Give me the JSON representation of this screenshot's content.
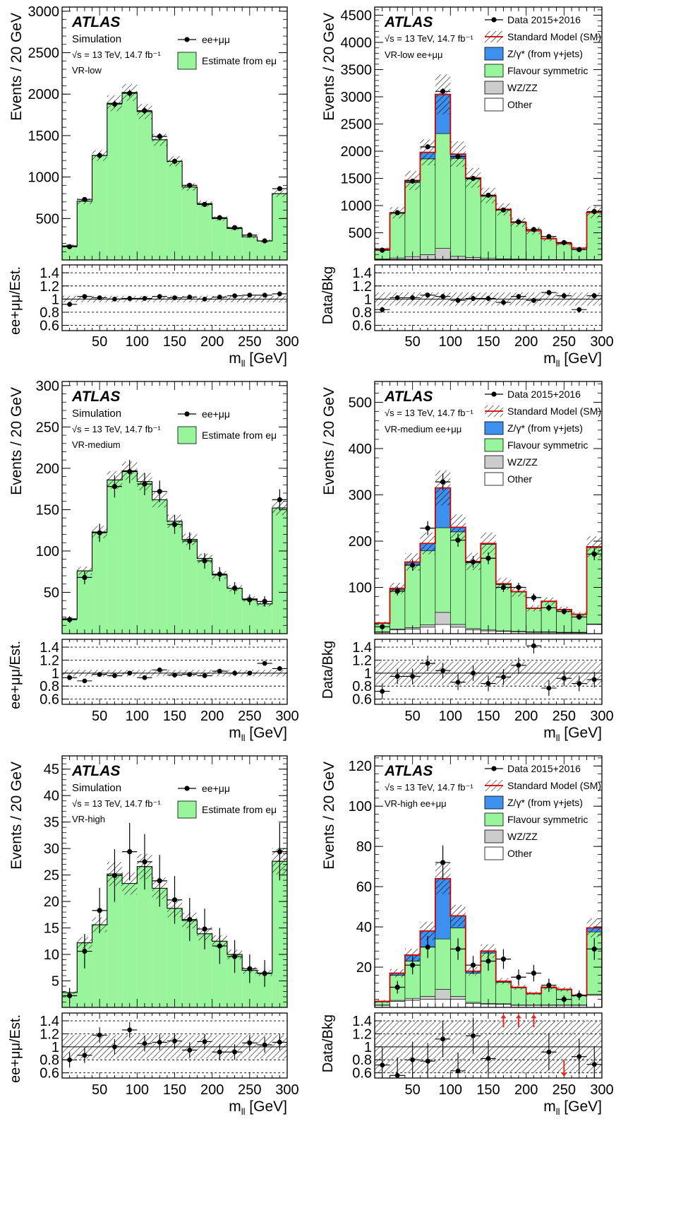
{
  "colors": {
    "flavour": "#99f59c",
    "zgamma": "#3d90ee",
    "wzzz": "#cccccc",
    "other": "#ffffff",
    "sm_line": "#d20000",
    "arrow": "#e8291c"
  },
  "labels": {
    "atlas": "ATLAS",
    "simulation": "Simulation",
    "energy": "√s = 13 TeV, 14.7 fb⁻¹",
    "xlabel": "m",
    "xlabel_sub": "ll",
    "xlabel_unit": " [GeV]",
    "ylabel_main": "Events / 20 GeV",
    "ylabel_ratio_mc": "ee+μμ/Est.",
    "ylabel_ratio_data": "Data/Bkg",
    "legend_mc_data": "ee+μμ",
    "legend_mc_est": "Estimate from eμ",
    "legend_data": "Data 2015+2016",
    "legend_sm": "Standard Model (SM)",
    "legend_zgamma": "Z/γ* (from γ+jets)",
    "legend_flavour": "Flavour symmetric",
    "legend_wzzz": "WZ/ZZ",
    "legend_other": "Other"
  },
  "chart_data": [
    {
      "id": "mc_low",
      "type": "bar",
      "region": "VR-low",
      "kind": "mc",
      "xlim": [
        0,
        300
      ],
      "ylim": [
        0,
        3050
      ],
      "yticks": [
        500,
        1000,
        1500,
        2000,
        2500,
        3000
      ],
      "xticks": [
        50,
        100,
        150,
        200,
        250,
        300
      ],
      "x": [
        10,
        30,
        50,
        70,
        90,
        110,
        130,
        150,
        170,
        190,
        210,
        230,
        250,
        270,
        290
      ],
      "estimate": [
        170,
        710,
        1260,
        1890,
        2020,
        1790,
        1450,
        1190,
        880,
        680,
        500,
        380,
        280,
        230,
        800
      ],
      "data": [
        160,
        730,
        1260,
        1880,
        2010,
        1800,
        1490,
        1190,
        900,
        670,
        510,
        390,
        300,
        230,
        860
      ],
      "ratio": [
        0.92,
        1.04,
        1.02,
        1.0,
        1.01,
        1.01,
        1.04,
        1.02,
        1.03,
        1.0,
        1.03,
        1.05,
        1.06,
        1.06,
        1.08
      ]
    },
    {
      "id": "data_low",
      "type": "bar",
      "region": "VR-low ee+μμ",
      "kind": "data",
      "xlim": [
        0,
        300
      ],
      "ylim": [
        0,
        4650
      ],
      "yticks": [
        500,
        1000,
        1500,
        2000,
        2500,
        3000,
        3500,
        4000,
        4500
      ],
      "xticks": [
        50,
        100,
        150,
        200,
        250,
        300
      ],
      "x": [
        10,
        30,
        50,
        70,
        90,
        110,
        130,
        150,
        170,
        190,
        210,
        230,
        250,
        270,
        290
      ],
      "other": [
        10,
        12,
        12,
        14,
        14,
        12,
        10,
        8,
        7,
        6,
        5,
        4,
        4,
        3,
        4
      ],
      "wzzz": [
        8,
        25,
        50,
        85,
        200,
        55,
        35,
        22,
        14,
        10,
        7,
        5,
        4,
        3,
        5
      ],
      "zgamma": [
        4,
        10,
        40,
        120,
        720,
        80,
        25,
        15,
        10,
        6,
        4,
        3,
        2,
        2,
        5
      ],
      "flavour": [
        180,
        820,
        1360,
        1760,
        2110,
        1800,
        1440,
        1140,
        900,
        670,
        520,
        380,
        290,
        210,
        860
      ],
      "data": [
        180,
        870,
        1450,
        2080,
        3100,
        1900,
        1500,
        1190,
        920,
        700,
        560,
        430,
        320,
        190,
        890
      ],
      "ratio": [
        0.84,
        1.02,
        1.02,
        1.06,
        1.04,
        0.98,
        1.01,
        1.01,
        0.95,
        1.04,
        0.98,
        1.1,
        1.05,
        0.84,
        1.05
      ]
    },
    {
      "id": "mc_medium",
      "type": "bar",
      "region": "VR-medium",
      "kind": "mc",
      "xlim": [
        0,
        300
      ],
      "ylim": [
        0,
        305
      ],
      "yticks": [
        50,
        100,
        150,
        200,
        250,
        300
      ],
      "xticks": [
        50,
        100,
        150,
        200,
        250,
        300
      ],
      "x": [
        10,
        30,
        50,
        70,
        90,
        110,
        130,
        150,
        170,
        190,
        210,
        230,
        250,
        270,
        290
      ],
      "estimate": [
        18,
        76,
        123,
        186,
        197,
        184,
        162,
        136,
        114,
        91,
        71,
        55,
        42,
        36,
        152
      ],
      "data": [
        17,
        68,
        122,
        178,
        196,
        181,
        172,
        132,
        112,
        88,
        72,
        55,
        41,
        39,
        162
      ],
      "ratio": [
        0.93,
        0.88,
        0.98,
        0.96,
        1.0,
        0.93,
        1.05,
        0.97,
        0.98,
        0.96,
        1.03,
        1.0,
        1.0,
        1.15,
        1.07
      ]
    },
    {
      "id": "data_medium",
      "type": "bar",
      "region": "VR-medium ee+μμ",
      "kind": "data",
      "xlim": [
        0,
        300
      ],
      "ylim": [
        0,
        545
      ],
      "yticks": [
        100,
        200,
        300,
        400,
        500
      ],
      "xticks": [
        50,
        100,
        150,
        200,
        250,
        300
      ],
      "x": [
        10,
        30,
        50,
        70,
        90,
        110,
        130,
        150,
        170,
        190,
        210,
        230,
        250,
        270,
        290
      ],
      "other": [
        3,
        8,
        10,
        14,
        20,
        14,
        8,
        6,
        5,
        4,
        3,
        3,
        2,
        2,
        20
      ],
      "wzzz": [
        1,
        2,
        3,
        5,
        26,
        6,
        3,
        2,
        1,
        1,
        1,
        1,
        1,
        1,
        1
      ],
      "zgamma": [
        1,
        3,
        7,
        16,
        86,
        10,
        3,
        2,
        2,
        1,
        1,
        1,
        1,
        1,
        2
      ],
      "flavour": [
        18,
        85,
        135,
        160,
        183,
        200,
        142,
        185,
        100,
        85,
        50,
        65,
        48,
        38,
        165
      ],
      "data": [
        15,
        92,
        148,
        228,
        328,
        202,
        155,
        163,
        100,
        100,
        78,
        56,
        48,
        36,
        172
      ],
      "ratio": [
        0.72,
        0.95,
        0.95,
        1.15,
        1.04,
        0.86,
        1.0,
        0.84,
        0.94,
        1.12,
        1.42,
        0.77,
        0.92,
        0.84,
        0.9
      ]
    },
    {
      "id": "mc_high",
      "type": "bar",
      "region": "VR-high",
      "kind": "mc",
      "xlim": [
        0,
        300
      ],
      "ylim": [
        0,
        47.5
      ],
      "yticks": [
        5,
        10,
        15,
        20,
        25,
        30,
        35,
        40,
        45
      ],
      "xticks": [
        50,
        100,
        150,
        200,
        250,
        300
      ],
      "x": [
        10,
        30,
        50,
        70,
        90,
        110,
        130,
        150,
        170,
        190,
        210,
        230,
        250,
        270,
        290
      ],
      "estimate": [
        2.8,
        12.2,
        15.6,
        25.2,
        23.4,
        26.6,
        22.5,
        18.7,
        16.4,
        13.9,
        12.5,
        10.0,
        7.0,
        6.5,
        27.6
      ],
      "data": [
        2.2,
        10.6,
        18.3,
        24.9,
        29.4,
        27.5,
        23.9,
        20.3,
        16.6,
        14.8,
        11.6,
        9.6,
        7.3,
        6.4,
        29.4
      ],
      "ratio": [
        0.8,
        0.87,
        1.18,
        1.0,
        1.26,
        1.05,
        1.07,
        1.09,
        0.95,
        1.08,
        0.92,
        0.92,
        1.06,
        1.03,
        1.07
      ]
    },
    {
      "id": "data_high",
      "type": "bar",
      "region": "VR-high ee+μμ",
      "kind": "data",
      "xlim": [
        0,
        300
      ],
      "ylim": [
        0,
        125
      ],
      "yticks": [
        20,
        40,
        60,
        80,
        100,
        120
      ],
      "xticks": [
        50,
        100,
        150,
        200,
        250,
        300
      ],
      "x": [
        10,
        30,
        50,
        70,
        90,
        110,
        130,
        150,
        170,
        190,
        210,
        230,
        250,
        270,
        290
      ],
      "other": [
        1,
        3,
        3.5,
        4,
        4,
        4,
        2,
        1.5,
        1.5,
        1,
        1,
        1,
        1,
        1,
        6
      ],
      "wzzz": [
        0.2,
        0.5,
        1,
        1.5,
        5,
        1.5,
        0.5,
        0.5,
        0.3,
        0.2,
        0.2,
        0.2,
        0.2,
        0.2,
        0.5
      ],
      "zgamma": [
        0.3,
        1,
        3,
        8,
        30,
        6,
        1,
        1,
        0.5,
        0.3,
        0.3,
        0.3,
        0.3,
        0.3,
        2
      ],
      "flavour": [
        1.5,
        12.5,
        18.5,
        24.5,
        25,
        34,
        14.5,
        25,
        10.7,
        8.5,
        5.5,
        8.5,
        7.5,
        4.5,
        31
      ],
      "data": [
        0,
        10,
        21,
        30,
        72,
        29,
        21,
        23,
        24,
        15,
        17,
        11,
        4,
        6,
        29
      ],
      "ratio": [
        0.72,
        0.56,
        0.8,
        0.78,
        1.12,
        0.63,
        1.17,
        0.82,
        1.45,
        1.45,
        1.45,
        0.92,
        0.56,
        0.85,
        0.73
      ],
      "ratio_arrows_up": [
        170,
        190,
        210
      ],
      "ratio_arrows_down": [
        250
      ]
    }
  ]
}
